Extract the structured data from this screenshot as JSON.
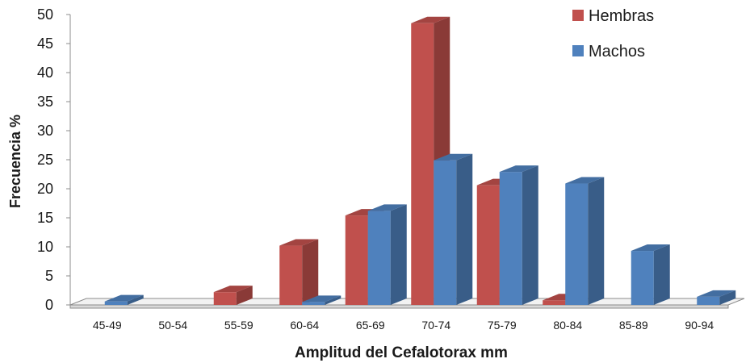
{
  "chart_data": {
    "type": "bar",
    "style": "3d-clustered-column",
    "title": "",
    "xlabel": "Amplitud del Cefalotorax mm",
    "ylabel": "Frecuencia %",
    "ylim": [
      0,
      50
    ],
    "yticks": [
      0,
      5,
      10,
      15,
      20,
      25,
      30,
      35,
      40,
      45,
      50
    ],
    "grid": false,
    "legend_position": "top-right",
    "categories": [
      "45-49",
      "50-54",
      "55-59",
      "60-64",
      "65-69",
      "70-74",
      "75-79",
      "80-84",
      "85-89",
      "90-94"
    ],
    "series": [
      {
        "name": "Hembras",
        "color": "#c0504d",
        "values": [
          0,
          0,
          2.2,
          10.2,
          15.4,
          48.5,
          20.6,
          0.8,
          0,
          0
        ]
      },
      {
        "name": "Machos",
        "color": "#4f81bd",
        "values": [
          0.6,
          0,
          0,
          0.5,
          16.2,
          24.9,
          22.9,
          20.9,
          9.3,
          1.4
        ]
      }
    ]
  }
}
